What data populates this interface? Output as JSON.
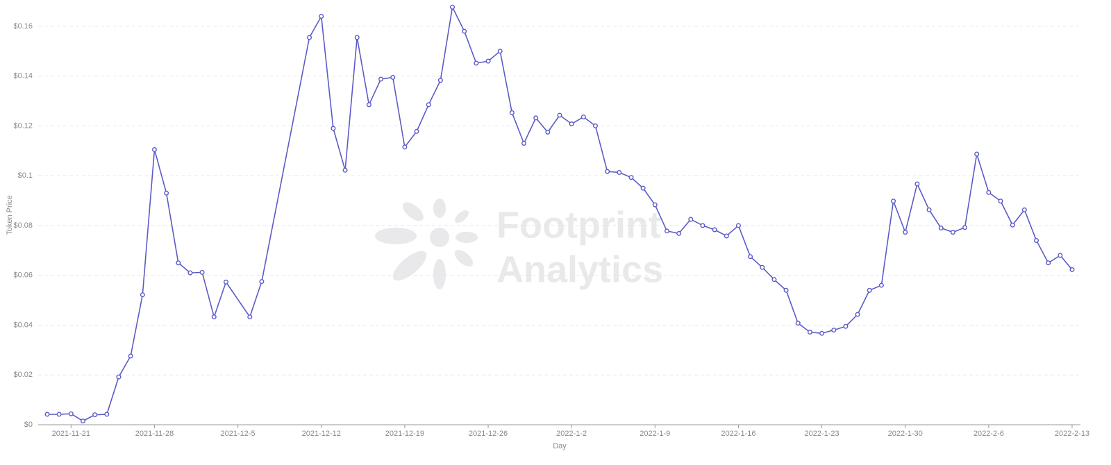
{
  "chart_data": {
    "type": "line",
    "x_label": "Day",
    "y_label": "Token Price",
    "watermark": [
      "Footprint",
      "Analytics"
    ],
    "x": [
      "2021-11-19",
      "2021-11-20",
      "2021-11-21",
      "2021-11-22",
      "2021-11-23",
      "2021-11-24",
      "2021-11-25",
      "2021-11-26",
      "2021-11-27",
      "2021-11-28",
      "2021-11-29",
      "2021-11-30",
      "2021-12-1",
      "2021-12-2",
      "2021-12-3",
      "2021-12-4",
      "2021-12-6",
      "2021-12-7",
      "2021-12-11",
      "2021-12-12",
      "2021-12-13",
      "2021-12-14",
      "2021-12-15",
      "2021-12-16",
      "2021-12-17",
      "2021-12-18",
      "2021-12-19",
      "2021-12-20",
      "2021-12-21",
      "2021-12-22",
      "2021-12-23",
      "2021-12-24",
      "2021-12-25",
      "2021-12-26",
      "2021-12-27",
      "2021-12-28",
      "2021-12-29",
      "2021-12-30",
      "2021-12-31",
      "2022-1-1",
      "2022-1-2",
      "2022-1-3",
      "2022-1-4",
      "2022-1-5",
      "2022-1-6",
      "2022-1-7",
      "2022-1-8",
      "2022-1-9",
      "2022-1-10",
      "2022-1-11",
      "2022-1-12",
      "2022-1-13",
      "2022-1-14",
      "2022-1-15",
      "2022-1-16",
      "2022-1-17",
      "2022-1-18",
      "2022-1-19",
      "2022-1-20",
      "2022-1-21",
      "2022-1-22",
      "2022-1-23",
      "2022-1-24",
      "2022-1-25",
      "2022-1-26",
      "2022-1-27",
      "2022-1-28",
      "2022-1-29",
      "2022-1-30",
      "2022-1-31",
      "2022-2-1",
      "2022-2-2",
      "2022-2-3",
      "2022-2-4",
      "2022-2-5",
      "2022-2-6",
      "2022-2-7",
      "2022-2-8",
      "2022-2-9",
      "2022-2-10",
      "2022-2-11",
      "2022-2-12",
      "2022-2-13"
    ],
    "series": [
      {
        "name": "Token Price",
        "color": "#5b5bc8",
        "values": [
          0.0042,
          0.0042,
          0.0044,
          0.0015,
          0.004,
          0.0042,
          0.0192,
          0.0276,
          0.0522,
          0.1105,
          0.093,
          0.065,
          0.061,
          0.0612,
          0.0433,
          0.0573,
          0.0433,
          0.0575,
          0.1555,
          0.164,
          0.119,
          0.1022,
          0.1555,
          0.1285,
          0.1388,
          0.1395,
          0.1115,
          0.1178,
          0.1285,
          0.1383,
          0.1677,
          0.158,
          0.1452,
          0.146,
          0.15,
          0.1253,
          0.113,
          0.1232,
          0.1175,
          0.1243,
          0.1208,
          0.1236,
          0.12,
          0.1017,
          0.1013,
          0.0993,
          0.095,
          0.0883,
          0.0778,
          0.0768,
          0.0825,
          0.08,
          0.0783,
          0.0758,
          0.08,
          0.0675,
          0.0632,
          0.0583,
          0.054,
          0.0408,
          0.0372,
          0.0367,
          0.038,
          0.0395,
          0.0443,
          0.054,
          0.056,
          0.0898,
          0.0773,
          0.0967,
          0.0863,
          0.079,
          0.0773,
          0.0792,
          0.1087,
          0.0933,
          0.0898,
          0.0802,
          0.0863,
          0.074,
          0.065,
          0.068,
          0.0623
        ]
      }
    ],
    "xlim": [
      "2021-11-19",
      "2022-2-13"
    ],
    "xticks": [
      "2021-11-21",
      "2021-11-28",
      "2021-12-5",
      "2021-12-12",
      "2021-12-19",
      "2021-12-26",
      "2022-1-2",
      "2022-1-9",
      "2022-1-16",
      "2022-1-23",
      "2022-1-30",
      "2022-2-6",
      "2022-2-13"
    ],
    "ylim": [
      0,
      0.17
    ],
    "yticks": [
      {
        "value": 0,
        "label": "$0"
      },
      {
        "value": 0.02,
        "label": "$0.02"
      },
      {
        "value": 0.04,
        "label": "$0.04"
      },
      {
        "value": 0.06,
        "label": "$0.06"
      },
      {
        "value": 0.08,
        "label": "$0.08"
      },
      {
        "value": 0.1,
        "label": "$0.1"
      },
      {
        "value": 0.12,
        "label": "$0.12"
      },
      {
        "value": 0.14,
        "label": "$0.14"
      },
      {
        "value": 0.16,
        "label": "$0.16"
      }
    ],
    "grid": true
  }
}
